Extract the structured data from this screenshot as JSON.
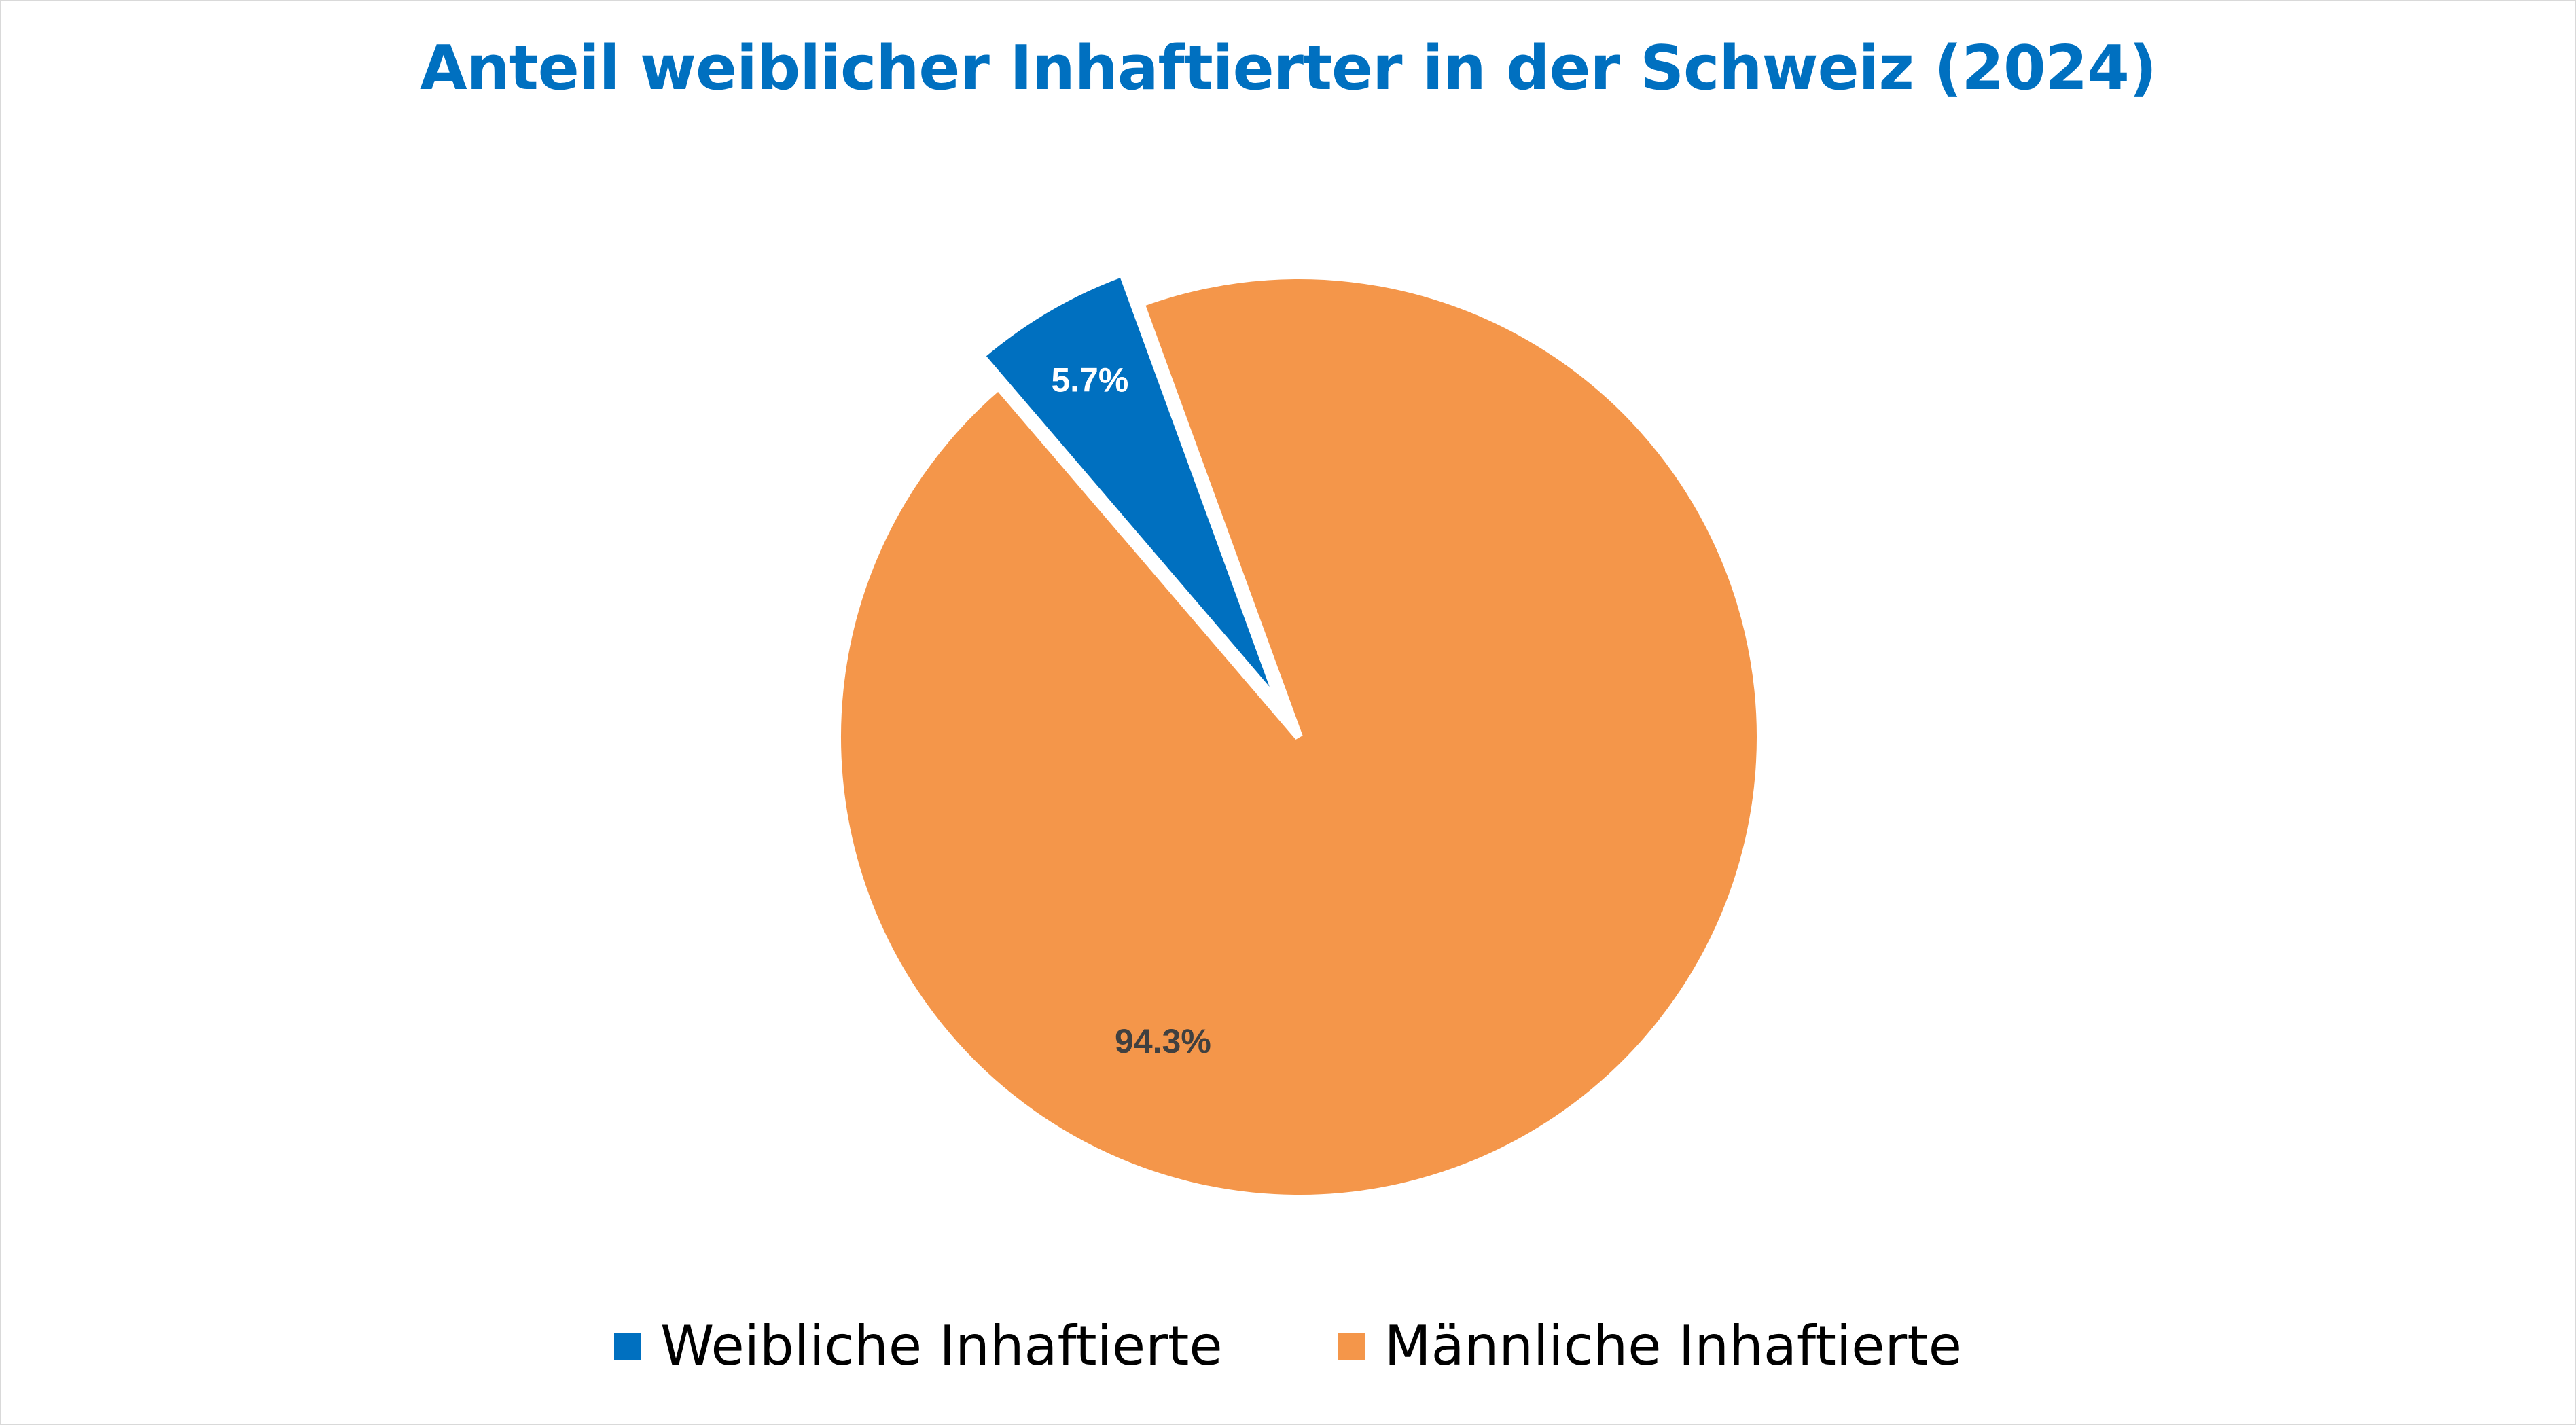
{
  "chart_data": {
    "type": "pie",
    "title": "Anteil weiblicher Inhaftierter in der Schweiz (2024)",
    "slices": [
      {
        "name": "Weibliche Inhaftierte",
        "value": 5.7,
        "label": "5.7%",
        "color": "#0070c0",
        "exploded": true
      },
      {
        "name": "Männliche Inhaftierte",
        "value": 94.3,
        "label": "94.3%",
        "color": "#f4964a",
        "exploded": false
      }
    ],
    "legend_position": "bottom"
  }
}
